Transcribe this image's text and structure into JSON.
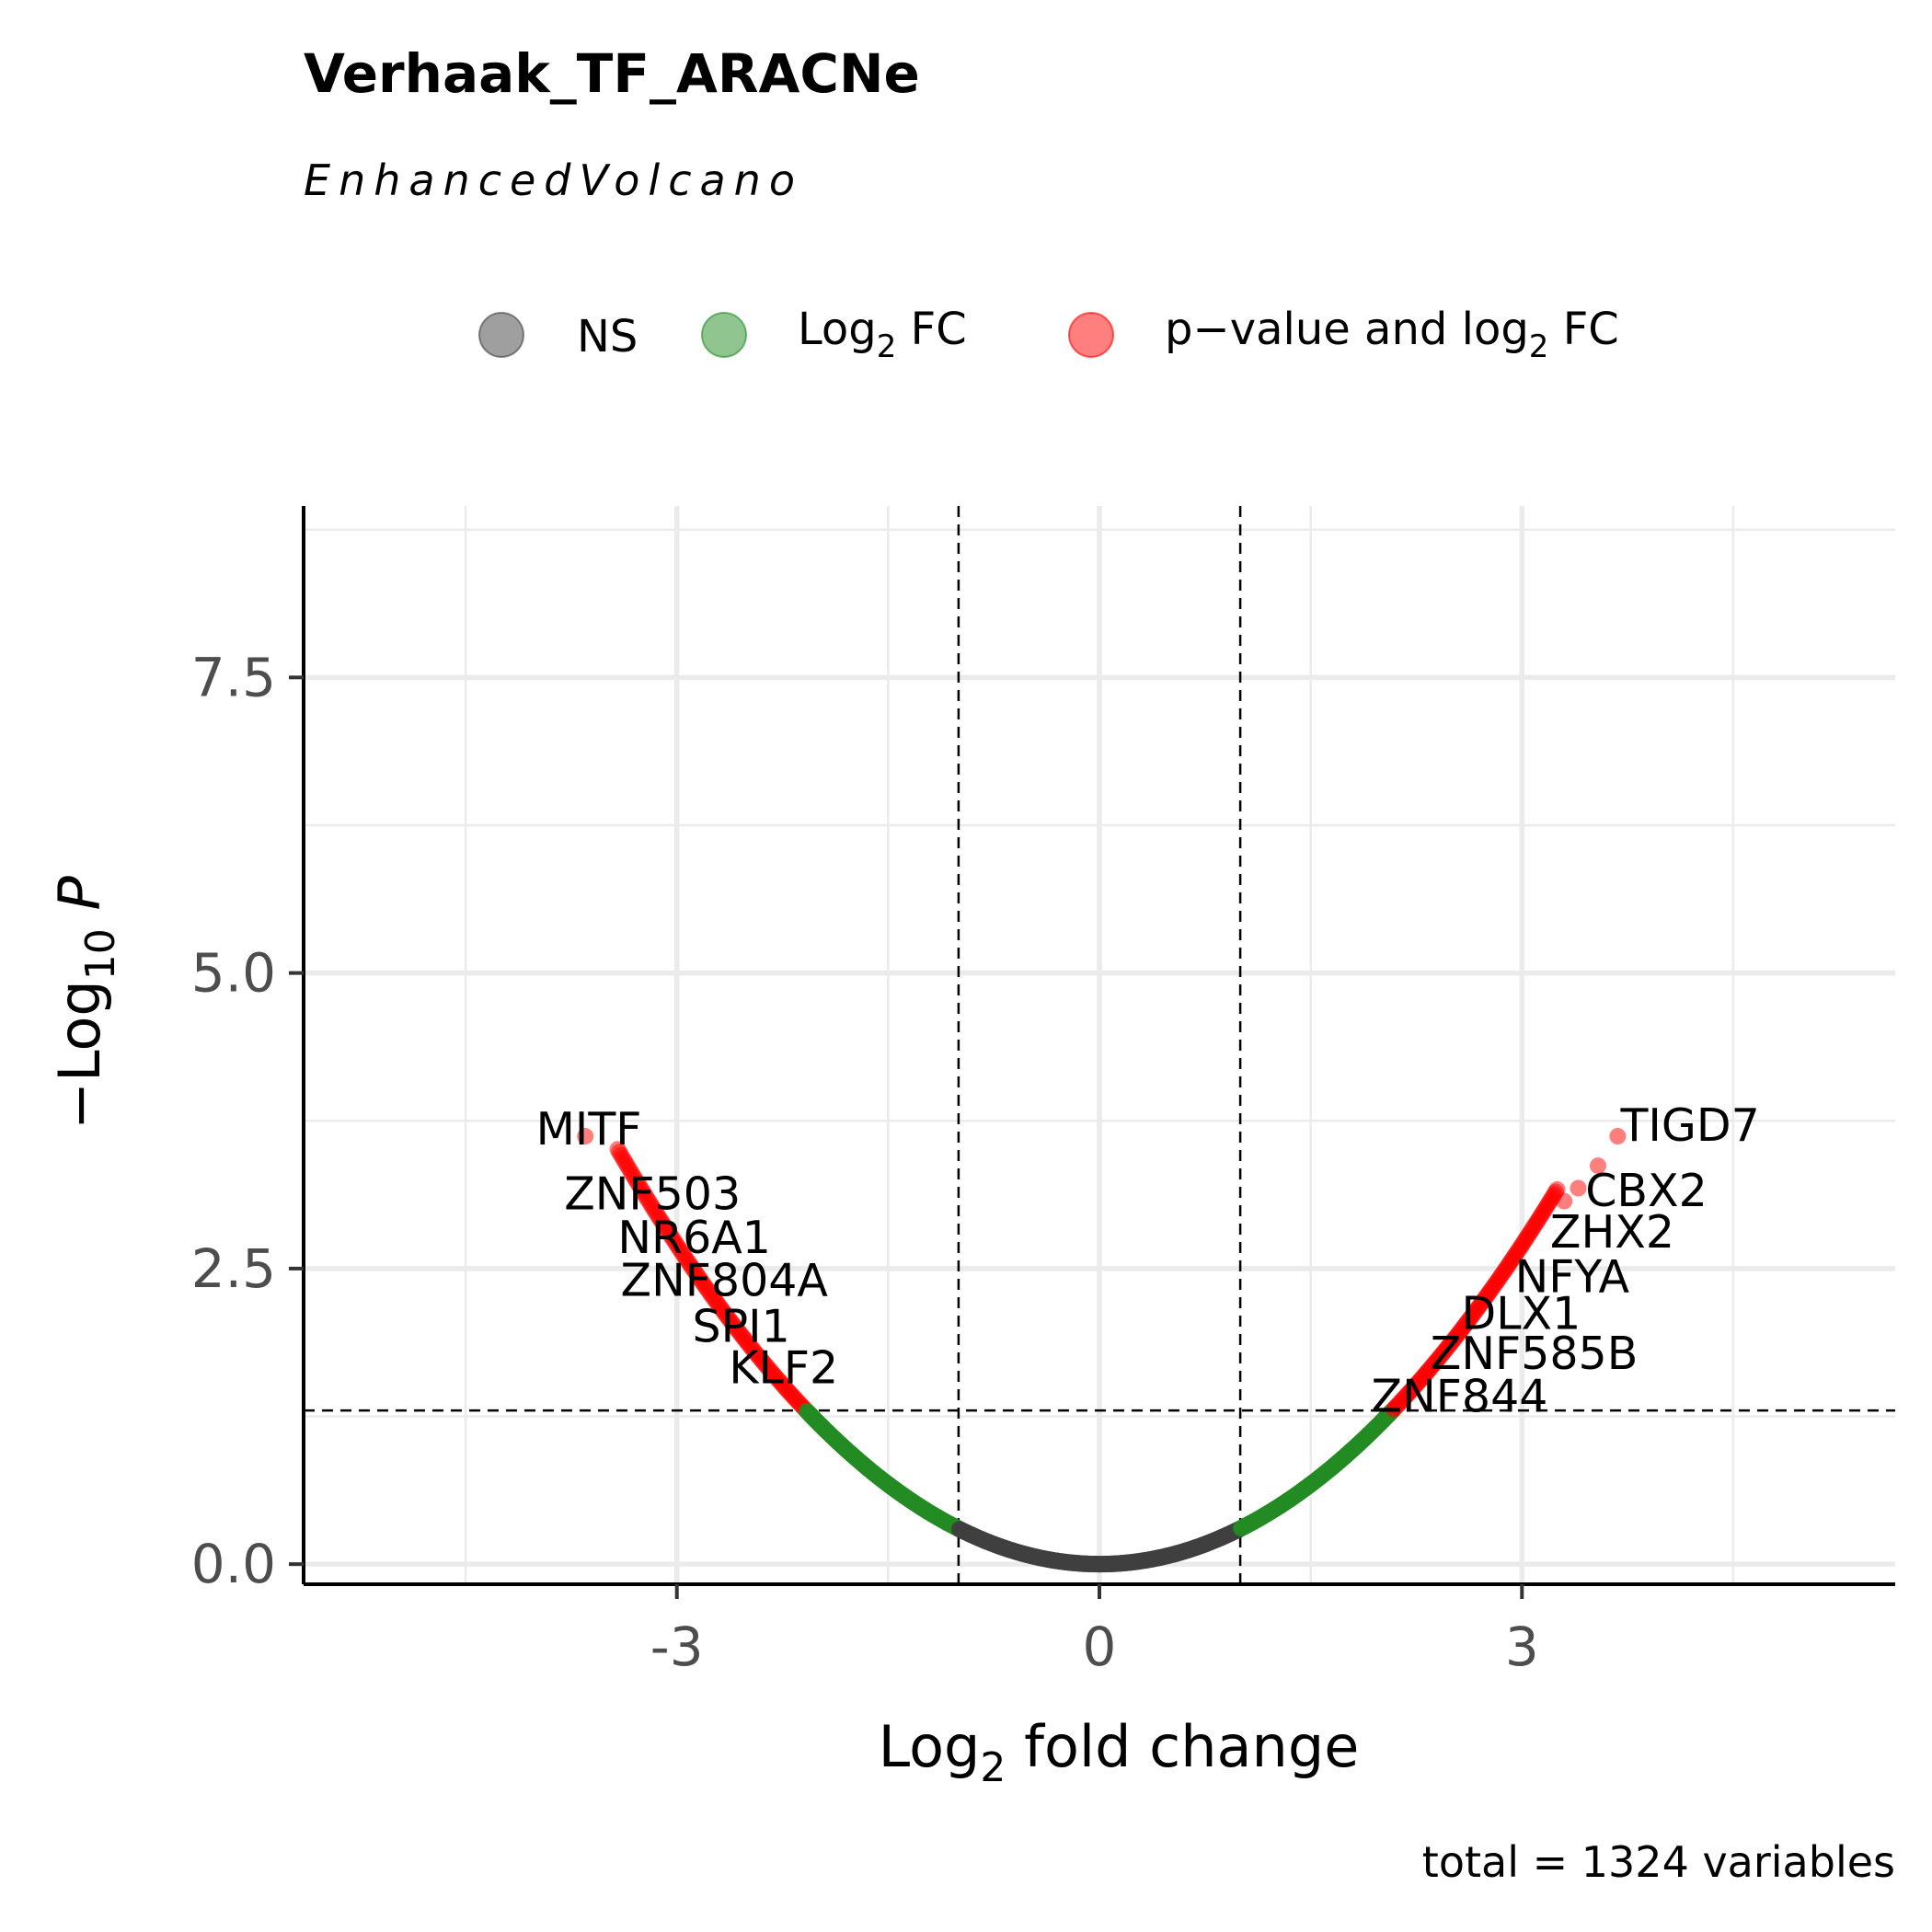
{
  "chart_data": {
    "type": "scatter",
    "title": "Verhaak_TF_ARACNe",
    "subtitle": "EnhancedVolcano",
    "caption": "total = 1324 variables",
    "xlabel": {
      "base": "Log",
      "sub": "2",
      "rest": " fold change"
    },
    "ylabel": {
      "prefix": "−Log",
      "sub": "10",
      "italic": "P"
    },
    "xlim": [
      -5.65,
      5.65
    ],
    "ylim": [
      -0.17,
      8.95
    ],
    "x_ticks": [
      {
        "value": -3,
        "label": "-3"
      },
      {
        "value": 0,
        "label": "0"
      },
      {
        "value": 3,
        "label": "3"
      }
    ],
    "x_minor": [
      -4.5,
      -1.5,
      1.5,
      4.5
    ],
    "y_ticks": [
      {
        "value": 0,
        "label": "0.0"
      },
      {
        "value": 2.5,
        "label": "2.5"
      },
      {
        "value": 5,
        "label": "5.0"
      },
      {
        "value": 7.5,
        "label": "7.5"
      }
    ],
    "y_minor": [
      1.25,
      3.75,
      6.25,
      8.75
    ],
    "fc_cutoff": 1,
    "p_cutoff_log10": 1.3,
    "curve_coefficient": 0.3,
    "legend": [
      {
        "key": "ns",
        "label": "NS",
        "color": "#404040"
      },
      {
        "key": "fc",
        "label_base": "Log",
        "label_sub": "2",
        "label_rest": " FC",
        "color": "#228B22"
      },
      {
        "key": "both",
        "label_base": "p−value and log",
        "label_sub": "2",
        "label_rest": " FC",
        "color": "#FF0000"
      }
    ],
    "colors": {
      "ns": "#404040",
      "fc": "#228B22",
      "both": "#FF0000"
    },
    "outliers": [
      {
        "x": -3.65,
        "y": 3.62
      },
      {
        "x": 3.54,
        "y": 3.37
      },
      {
        "x": 3.68,
        "y": 3.62
      },
      {
        "x": 3.4,
        "y": 3.18
      },
      {
        "x": 3.3,
        "y": 3.07
      }
    ],
    "labels": [
      {
        "text": "MITF",
        "x": -4.0,
        "y": 3.55
      },
      {
        "text": "ZNF503",
        "x": -3.8,
        "y": 3.0
      },
      {
        "text": "NR6A1",
        "x": -3.42,
        "y": 2.63
      },
      {
        "text": "ZNF804A",
        "x": -3.4,
        "y": 2.27
      },
      {
        "text": "SPI1",
        "x": -2.89,
        "y": 1.88
      },
      {
        "text": "KLF2",
        "x": -2.63,
        "y": 1.53
      },
      {
        "text": "TIGD7",
        "x": 3.7,
        "y": 3.58
      },
      {
        "text": "CBX2",
        "x": 3.45,
        "y": 3.03
      },
      {
        "text": "ZHX2",
        "x": 3.2,
        "y": 2.68
      },
      {
        "text": "NFYA",
        "x": 2.95,
        "y": 2.3
      },
      {
        "text": "DLX1",
        "x": 2.57,
        "y": 1.99
      },
      {
        "text": "ZNF585B",
        "x": 2.35,
        "y": 1.65
      },
      {
        "text": "ZNF844",
        "x": 1.93,
        "y": 1.29
      }
    ]
  }
}
